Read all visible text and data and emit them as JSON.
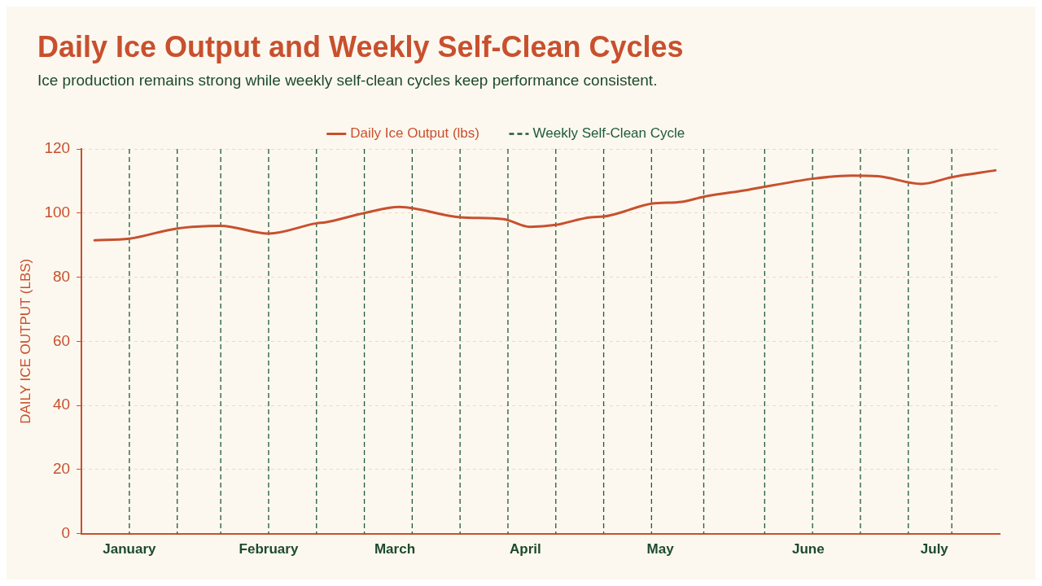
{
  "chart_data": {
    "type": "line",
    "title": "Daily Ice Output and Weekly Self-Clean Cycles",
    "subtitle": "Ice production remains strong while weekly self-clean cycles keep performance consistent.",
    "ylabel": "DAILY ICE OUTPUT (LBS)",
    "x": [
      "--01-04",
      "--01-12",
      "--01-23",
      "--02-02",
      "--02-13",
      "--02-24",
      "--02-26",
      "--03-07",
      "--03-15",
      "--03-29",
      "--04-08",
      "--04-14",
      "--04-20",
      "--04-28",
      "--05-01",
      "--05-12",
      "--05-19",
      "--05-24",
      "--06-03",
      "--06-18",
      "--06-27",
      "--07-03",
      "--07-13",
      "--07-20",
      "--07-30"
    ],
    "series": [
      {
        "name": "Daily Ice Output (lbs)",
        "color": "#c8502e",
        "values": [
          91.5,
          92.0,
          95.2,
          96.0,
          93.6,
          96.8,
          97.1,
          100.0,
          101.9,
          98.7,
          98.1,
          95.7,
          96.3,
          98.7,
          98.9,
          102.9,
          103.5,
          105.1,
          107.2,
          110.7,
          111.7,
          111.5,
          109.1,
          111.2,
          113.3
        ]
      }
    ],
    "xlim": [
      "--01-01",
      "--07-31"
    ],
    "xticks": [
      {
        "value": "--01-12",
        "label": "January"
      },
      {
        "value": "--02-13",
        "label": "February"
      },
      {
        "value": "--03-14",
        "label": "March"
      },
      {
        "value": "--04-13",
        "label": "April"
      },
      {
        "value": "--05-14",
        "label": "May"
      },
      {
        "value": "--06-17",
        "label": "June"
      },
      {
        "value": "--07-16",
        "label": "July"
      }
    ],
    "ylim": [
      0,
      120
    ],
    "yticks": [
      0,
      20,
      40,
      60,
      80,
      100,
      120
    ],
    "ref_lines": [
      {
        "axis": "x",
        "value": "--01-12",
        "label": "Weekly Self-Clean Cycle",
        "color": "#1f5a3a",
        "line_style": "dashed"
      },
      {
        "axis": "x",
        "value": "--01-23",
        "color": "#1f5a3a",
        "line_style": "dashed"
      },
      {
        "axis": "x",
        "value": "--02-02",
        "color": "#1f5a3a",
        "line_style": "dashed"
      },
      {
        "axis": "x",
        "value": "--02-13",
        "color": "#1f5a3a",
        "line_style": "dashed"
      },
      {
        "axis": "x",
        "value": "--02-24",
        "color": "#1f5a3a",
        "line_style": "dashed"
      },
      {
        "axis": "x",
        "value": "--03-07",
        "color": "#1f5a3a",
        "line_style": "dashed"
      },
      {
        "axis": "x",
        "value": "--03-18",
        "color": "#1f5a3a",
        "line_style": "dashed"
      },
      {
        "axis": "x",
        "value": "--03-29",
        "color": "#1f5a3a",
        "line_style": "dashed"
      },
      {
        "axis": "x",
        "value": "--04-09",
        "color": "#1f5a3a",
        "line_style": "dashed"
      },
      {
        "axis": "x",
        "value": "--04-20",
        "color": "#1f5a3a",
        "line_style": "dashed"
      },
      {
        "axis": "x",
        "value": "--05-01",
        "color": "#1f5a3a",
        "line_style": "dashed"
      },
      {
        "axis": "x",
        "value": "--05-12",
        "color": "#1f5a3a",
        "line_style": "dashed"
      },
      {
        "axis": "x",
        "value": "--05-24",
        "color": "#1f5a3a",
        "line_style": "dashed"
      },
      {
        "axis": "x",
        "value": "--06-07",
        "color": "#1f5a3a",
        "line_style": "dashed"
      },
      {
        "axis": "x",
        "value": "--06-18",
        "color": "#1f5a3a",
        "line_style": "dashed"
      },
      {
        "axis": "x",
        "value": "--06-29",
        "color": "#1f5a3a",
        "line_style": "dashed"
      },
      {
        "axis": "x",
        "value": "--07-10",
        "color": "#1f5a3a",
        "line_style": "dashed"
      },
      {
        "axis": "x",
        "value": "--07-20",
        "color": "#1f5a3a",
        "line_style": "dashed"
      }
    ],
    "grid": "y",
    "legend": "top",
    "marker": "none",
    "line_style": "solid"
  }
}
